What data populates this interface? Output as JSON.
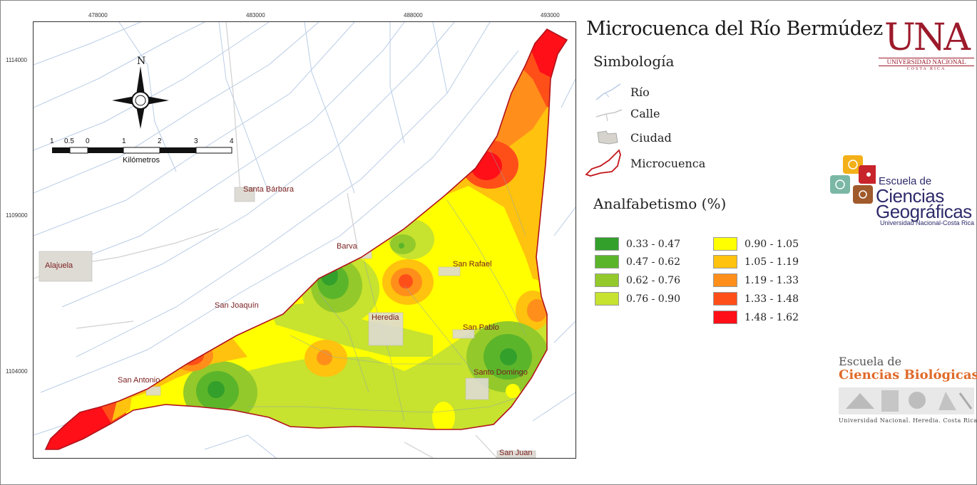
{
  "title": "Microcuenca del Río Bermúdez",
  "coordinates": {
    "x_ticks": [
      "478000",
      "483000",
      "488000",
      "493000"
    ],
    "y_ticks": [
      "1114000",
      "1109000",
      "1104000"
    ]
  },
  "north_arrow": {
    "label": "N"
  },
  "scale_bar": {
    "ticks": [
      "1",
      "0.5",
      "0",
      "1",
      "2",
      "3",
      "4"
    ],
    "unit": "Kilómetros"
  },
  "towns": [
    {
      "id": "santa-barbara",
      "name": "Santa Bárbara"
    },
    {
      "id": "barva",
      "name": "Barva"
    },
    {
      "id": "alajuela",
      "name": "Alajuela"
    },
    {
      "id": "san-rafael",
      "name": "San Rafael"
    },
    {
      "id": "san-joaquin",
      "name": "San Joaquín"
    },
    {
      "id": "heredia",
      "name": "Heredia"
    },
    {
      "id": "san-pablo",
      "name": "San Pablo"
    },
    {
      "id": "santo-domingo",
      "name": "Santo Domingo"
    },
    {
      "id": "san-antonio",
      "name": "San Antonio"
    },
    {
      "id": "san-juan",
      "name": "San Juan"
    }
  ],
  "symbology": {
    "heading": "Simbología",
    "items": [
      {
        "id": "rio",
        "label": "Río",
        "icon": "river-icon",
        "color": "#b9cde6"
      },
      {
        "id": "calle",
        "label": "Calle",
        "icon": "road-icon",
        "color": "#d0d0d0"
      },
      {
        "id": "ciudad",
        "label": "Ciudad",
        "icon": "city-icon",
        "color": "#d6d3cc"
      },
      {
        "id": "microcuenca",
        "label": "Microcuenca",
        "icon": "watershed-icon",
        "color": "#c4161c"
      }
    ]
  },
  "analfabetismo": {
    "heading": "Analfabetismo (%)",
    "classes": [
      {
        "range": "0.33 - 0.47",
        "color": "#33a02c"
      },
      {
        "range": "0.47 - 0.62",
        "color": "#5bb52a"
      },
      {
        "range": "0.62 - 0.76",
        "color": "#93c92a"
      },
      {
        "range": "0.76 - 0.90",
        "color": "#c7e22f"
      },
      {
        "range": "0.90 - 1.05",
        "color": "#ffff00"
      },
      {
        "range": "1.05 - 1.19",
        "color": "#ffc20e"
      },
      {
        "range": "1.19 - 1.33",
        "color": "#ff8f1a"
      },
      {
        "range": "1.33 - 1.48",
        "color": "#ff4f19"
      },
      {
        "range": "1.48 - 1.62",
        "color": "#ff0f17"
      }
    ]
  },
  "logos": {
    "una": {
      "text": "UNA",
      "subtitle": "UNIVERSIDAD NACIONAL",
      "country": "COSTA RICA"
    },
    "geograficas": {
      "line1": "Escuela de",
      "line2": "Ciencias",
      "line3": "Geográficas",
      "line4": "Universidad Nacional-Costa Rica",
      "colors": [
        "#f3b019",
        "#c8242b",
        "#7ab8a5",
        "#a05a2c"
      ]
    },
    "biologicas": {
      "line1": "Escuela de",
      "line2": "Ciencias Biológicas",
      "line3": "Universidad Nacional.  Heredia. Costa Rica."
    }
  }
}
